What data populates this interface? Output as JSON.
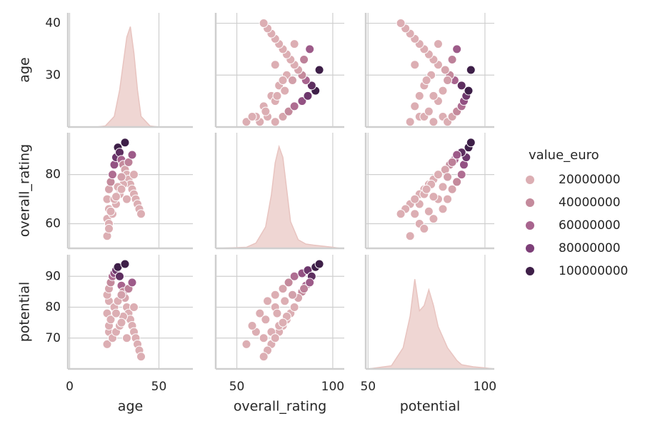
{
  "chart_data": {
    "type": "pairplot",
    "variables": [
      {
        "label": "age",
        "lim": [
          -1,
          69
        ],
        "ylim": [
          20,
          42
        ],
        "ticks": [
          0,
          50
        ],
        "yticks": [
          30,
          40
        ]
      },
      {
        "label": "overall_rating",
        "lim": [
          39,
          106
        ],
        "ylim": [
          50,
          97
        ],
        "ticks": [
          50,
          100
        ],
        "yticks": [
          60,
          80
        ]
      },
      {
        "label": "potential",
        "lim": [
          49,
          104
        ],
        "ylim": [
          60,
          97
        ],
        "ticks": [
          50,
          100
        ],
        "yticks": [
          70,
          80,
          90
        ]
      }
    ],
    "points": {
      "age": [
        21,
        21,
        22,
        21,
        22,
        23,
        24,
        25,
        26,
        27,
        28,
        29,
        30,
        31,
        32,
        33,
        34,
        35,
        36,
        37,
        38,
        39,
        40,
        22,
        24,
        26,
        28,
        30,
        25,
        27,
        29,
        33,
        35,
        31,
        22,
        23,
        26,
        29,
        32,
        36
      ],
      "overall_rating": [
        55,
        62,
        66,
        70,
        74,
        77,
        80,
        84,
        87,
        91,
        89,
        86,
        84,
        82,
        80,
        78,
        76,
        74,
        72,
        70,
        68,
        66,
        64,
        60,
        64,
        68,
        72,
        76,
        70,
        75,
        79,
        85,
        88,
        93,
        58,
        65,
        71,
        74,
        70,
        80
      ],
      "potential": [
        68,
        78,
        82,
        84,
        86,
        88,
        90,
        91,
        92,
        93,
        90,
        87,
        85,
        83,
        80,
        78,
        76,
        74,
        72,
        70,
        68,
        66,
        64,
        72,
        70,
        72,
        74,
        77,
        80,
        82,
        84,
        86,
        88,
        94,
        74,
        76,
        78,
        75,
        70,
        80
      ],
      "value_euro": [
        1000000,
        3000000,
        8000000,
        15000000,
        25000000,
        40000000,
        55000000,
        70000000,
        85000000,
        105000000,
        90000000,
        60000000,
        40000000,
        25000000,
        15000000,
        8000000,
        5000000,
        3000000,
        2000000,
        1000000,
        1000000,
        1000000,
        1000000,
        2000000,
        2000000,
        3000000,
        5000000,
        8000000,
        10000000,
        18000000,
        28000000,
        45000000,
        65000000,
        100000000,
        2000000,
        4000000,
        8000000,
        6000000,
        2000000,
        12000000
      ]
    },
    "diag_ylim": [
      0,
      1
    ],
    "kde": [
      {
        "x": [
          15,
          20,
          25,
          28,
          30,
          32,
          34,
          36,
          38,
          40,
          45,
          50
        ],
        "values": [
          0,
          0.01,
          0.1,
          0.35,
          0.6,
          0.85,
          0.95,
          0.7,
          0.35,
          0.1,
          0.01,
          0
        ]
      },
      {
        "x": [
          40,
          55,
          60,
          65,
          68,
          70,
          72,
          74,
          76,
          78,
          82,
          86,
          90,
          95,
          100,
          104
        ],
        "values": [
          0,
          0.01,
          0.05,
          0.2,
          0.5,
          0.8,
          0.95,
          0.85,
          0.55,
          0.25,
          0.08,
          0.04,
          0.03,
          0.02,
          0.01,
          0
        ]
      },
      {
        "x": [
          50,
          60,
          65,
          68,
          70,
          72,
          74,
          76,
          78,
          80,
          84,
          88,
          90,
          95,
          100,
          104
        ],
        "values": [
          0,
          0.03,
          0.2,
          0.5,
          0.85,
          0.55,
          0.6,
          0.75,
          0.6,
          0.4,
          0.2,
          0.08,
          0.04,
          0.02,
          0.01,
          0
        ]
      }
    ],
    "kde_color": "#e8c4c0",
    "grid": true,
    "legend": "right",
    "hue": {
      "title": "value_euro",
      "series": [
        {
          "name": "20000000",
          "color": "#dcaeb3"
        },
        {
          "name": "40000000",
          "color": "#c48a9c"
        },
        {
          "name": "60000000",
          "color": "#a8648e"
        },
        {
          "name": "80000000",
          "color": "#7d3f78"
        },
        {
          "name": "100000000",
          "color": "#3e1f48"
        }
      ]
    }
  }
}
